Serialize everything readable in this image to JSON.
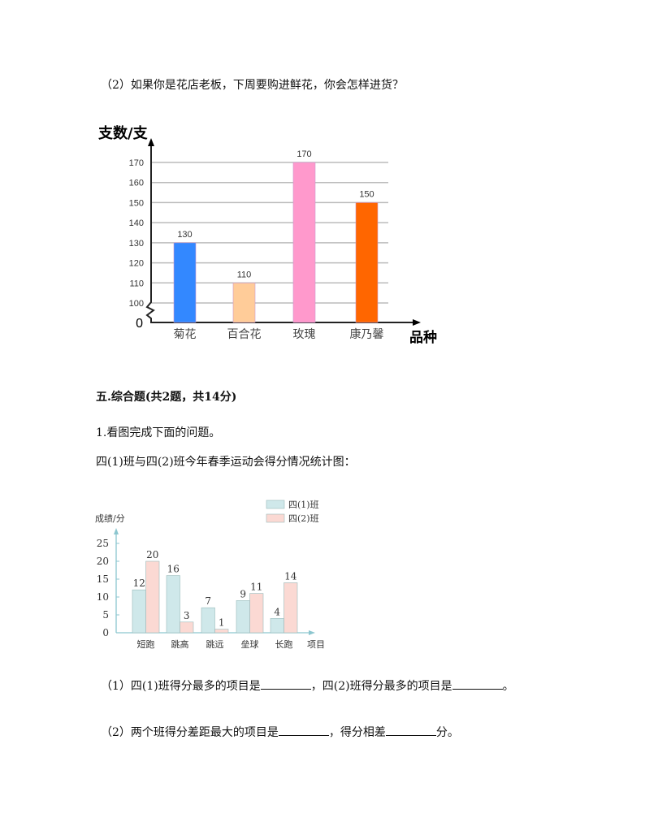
{
  "q2_prompt": "（2）如果你是花店老板，下周要购进鲜花，你会怎样进货？",
  "section_title": "五.综合题(共2题，共14分)",
  "problem1_title": "1.看图完成下面的问题。",
  "problem1_caption": "四(1)班与四(2)班今年春季运动会得分情况统计图：",
  "sub1": {
    "part1": "（1）四(1)班得分最多的项目是",
    "part2": "，四(2)班得分最多的项目是",
    "part3": "。"
  },
  "sub2": {
    "part1": "（2）两个班得分差距最大的项目是",
    "part2": "，得分相差",
    "part3": "分。"
  },
  "chart_data": [
    {
      "type": "bar",
      "ylabel": "支数/支",
      "xlabel": "品种",
      "categories": [
        "菊花",
        "百合花",
        "玫瑰",
        "康乃馨"
      ],
      "values": [
        130,
        110,
        170,
        150
      ],
      "colors": [
        "#3388ff",
        "#ffcc99",
        "#ff99cc",
        "#ff6600"
      ],
      "ylim": [
        100,
        170
      ],
      "yticks": [
        100,
        110,
        120,
        130,
        140,
        150,
        160,
        170
      ],
      "origin_label": "0",
      "axis_break": true,
      "grid": true
    },
    {
      "type": "bar",
      "ylabel": "成绩/分",
      "xlabel": "项目",
      "categories": [
        "短跑",
        "跳高",
        "跳远",
        "垒球",
        "长跑"
      ],
      "series": [
        {
          "name": "四(1)班",
          "values": [
            12,
            16,
            7,
            9,
            4
          ],
          "color": "#cfe8ea"
        },
        {
          "name": "四(2)班",
          "values": [
            20,
            3,
            1,
            11,
            14
          ],
          "color": "#fbd9d3"
        }
      ],
      "data_labels": [
        [
          12,
          16,
          7,
          9,
          4
        ],
        [
          20,
          3,
          1,
          11,
          14
        ]
      ],
      "yticks": [
        0,
        5,
        10,
        15,
        20,
        25
      ],
      "ylim": [
        0,
        25
      ],
      "legend": "top-right",
      "grid": false
    }
  ]
}
